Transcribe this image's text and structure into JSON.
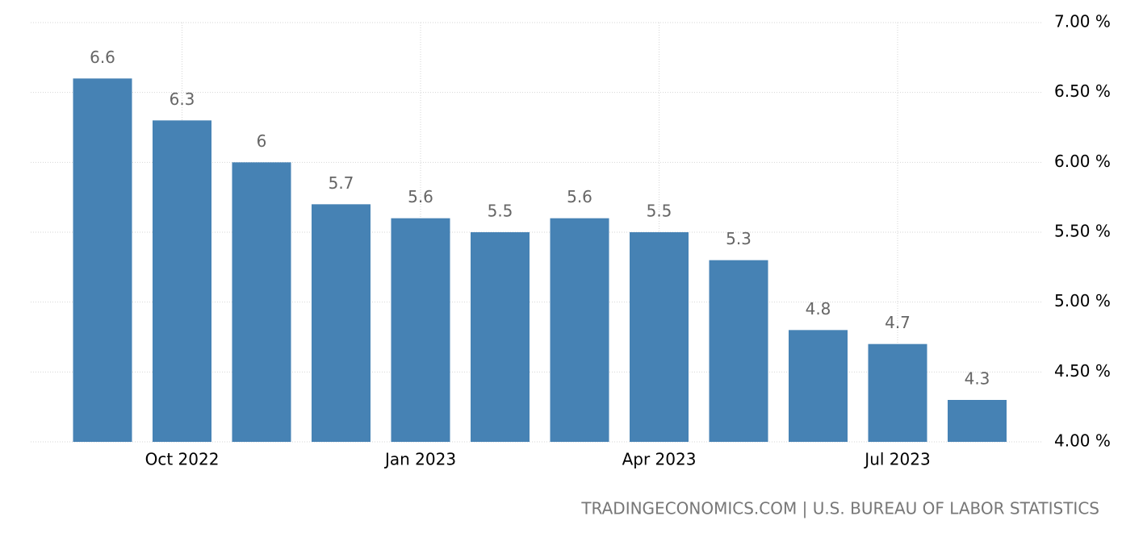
{
  "chart_data": {
    "type": "bar",
    "categories": [
      null,
      "Oct 2022",
      null,
      null,
      "Jan 2023",
      null,
      null,
      "Apr 2023",
      null,
      null,
      "Jul 2023",
      null
    ],
    "values": [
      6.6,
      6.3,
      6,
      5.7,
      5.6,
      5.5,
      5.6,
      5.5,
      5.3,
      4.8,
      4.7,
      4.3
    ],
    "color": "#4682b4",
    "ylim": [
      4,
      7
    ],
    "yticks": [
      {
        "value": 4,
        "label": "4.00 %"
      },
      {
        "value": 4.5,
        "label": "4.50 %"
      },
      {
        "value": 5,
        "label": "5.00 %"
      },
      {
        "value": 5.5,
        "label": "5.50 %"
      },
      {
        "value": 6,
        "label": "6.00 %"
      },
      {
        "value": 6.5,
        "label": "6.50 %"
      },
      {
        "value": 7,
        "label": "7.00 %"
      }
    ],
    "grid": true,
    "source": "TRADINGECONOMICS.COM | U.S. BUREAU OF LABOR STATISTICS"
  }
}
